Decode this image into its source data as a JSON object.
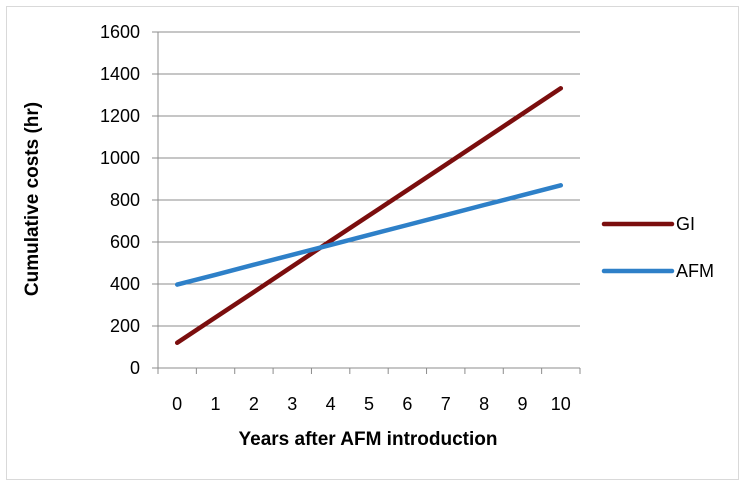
{
  "chart_data": {
    "type": "line",
    "x": [
      0,
      1,
      2,
      3,
      4,
      5,
      6,
      7,
      8,
      9,
      10
    ],
    "series": [
      {
        "name": "GI",
        "color": "#7b0e0e",
        "values": [
          120,
          241,
          362,
          484,
          605,
          726,
          847,
          968,
          1089,
          1211,
          1332
        ]
      },
      {
        "name": "AFM",
        "color": "#2e80c8",
        "values": [
          397,
          444,
          492,
          539,
          586,
          634,
          681,
          728,
          776,
          823,
          870
        ]
      }
    ],
    "xlabel": "Years after AFM introduction",
    "ylabel": "Cumulative costs (hr)",
    "ylim": [
      0,
      1600
    ],
    "yticks": [
      0,
      200,
      400,
      600,
      800,
      1000,
      1200,
      1400,
      1600
    ],
    "xticks": [
      "0",
      "1",
      "2",
      "3",
      "4",
      "5",
      "6",
      "7",
      "8",
      "9",
      "10"
    ],
    "grid": "horizontal",
    "legend": "right"
  }
}
